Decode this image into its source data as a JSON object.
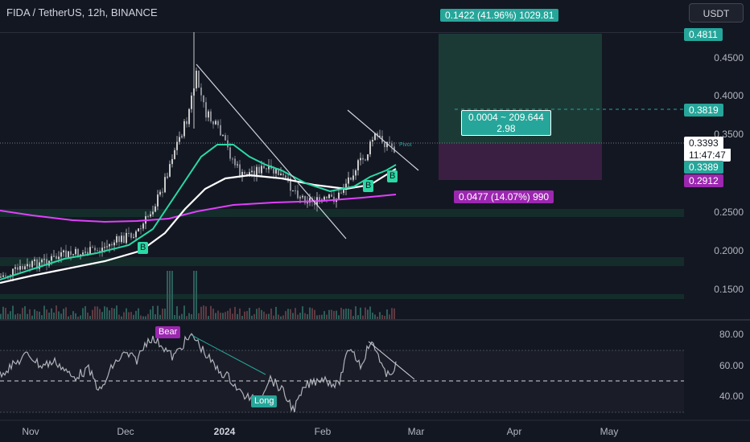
{
  "header": {
    "title": "FIDA / TetherUS, 12h, BINANCE",
    "currency_button": "USDT"
  },
  "price_axis": {
    "ticks": [
      "0.4500",
      "0.4000",
      "0.3500",
      "0.3000",
      "0.2500",
      "0.2000",
      "0.1500"
    ]
  },
  "price_tags": {
    "target": "0.4811",
    "tp_line": "0.3819",
    "current": "0.3393",
    "countdown": "11:47:47",
    "entry": "0.3389",
    "stop": "0.2912"
  },
  "position_tool": {
    "target_label": "0.1422 (41.96%) 1029.81",
    "info_label_line1": "0.0004 ~ 209.644",
    "info_label_line2": "2.98",
    "stop_label": "0.0477 (14.07%) 990"
  },
  "markers": {
    "buy_labels": [
      "B",
      "B",
      "B"
    ],
    "pivot_text": "Pivot"
  },
  "rsi": {
    "axis_ticks": [
      "80.00",
      "60.00",
      "40.00"
    ],
    "bear_label": "Bear",
    "long_label": "Long"
  },
  "time_axis": {
    "labels": [
      "Nov",
      "Dec",
      "2024",
      "Feb",
      "Mar",
      "Apr",
      "May"
    ]
  },
  "colors": {
    "background": "#131722",
    "up": "#26a69a",
    "down": "#ef5350",
    "candle_body": "#c9c9c9",
    "ma_fast": "#2bd9a5",
    "ma_slow": "#ffffff",
    "ma_long": "#e040fb",
    "target_zone": "#1b3a36",
    "stop_zone": "#3a1f42",
    "rsi_line": "#b0b3bb",
    "bear_tag": "#9c27b0",
    "long_tag": "#26a69a"
  }
}
